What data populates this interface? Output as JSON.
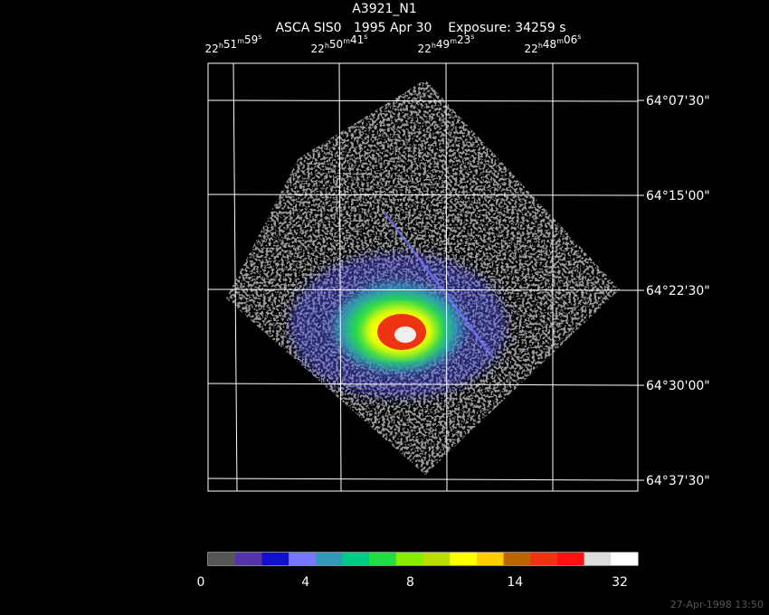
{
  "header": {
    "title": "A3921_N1",
    "subtitle": "ASCA SIS0   1995 Apr 30    Exposure: 34259 s"
  },
  "ra_labels": [
    "22h51m59s",
    "22h50m41s",
    "22h49m23s",
    "22h48m06s"
  ],
  "dec_labels": [
    "64°07'30\"",
    "64°15'00\"",
    "64°22'30\"",
    "64°30'00\"",
    "64°37'30\""
  ],
  "colorbar": {
    "colors": [
      "#555555",
      "#5533aa",
      "#1111cc",
      "#7777ff",
      "#3399bb",
      "#00cc88",
      "#22dd44",
      "#88ee00",
      "#bbdd00",
      "#ffff00",
      "#ffcc00",
      "#bb6600",
      "#ee3311",
      "#ff1111",
      "#dddddd",
      "#ffffff"
    ],
    "ticks": [
      "0",
      "4",
      "8",
      "14",
      "32"
    ]
  },
  "footer": "27-Apr-1998 13:50"
}
